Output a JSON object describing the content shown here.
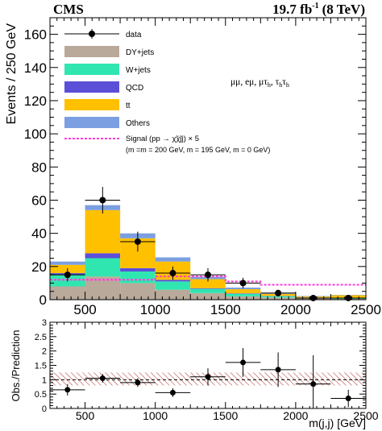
{
  "header": {
    "experiment": "CMS",
    "lumi_value": "19.7 fb",
    "lumi_exp": "-1",
    "energy": "(8 TeV)"
  },
  "channels": {
    "part1": "μμ, eμ, μτ",
    "sub1": "h",
    "part2": ", τ",
    "sub2": "h",
    "part3": "τ",
    "sub3": "h"
  },
  "chart_data": [
    {
      "type": "bar",
      "stacked": true,
      "ylabel": "Events / 250 GeV",
      "xlim": [
        250,
        2500
      ],
      "ylim": [
        0,
        170
      ],
      "yticks": [
        0,
        20,
        40,
        60,
        80,
        100,
        120,
        140,
        160
      ],
      "xticks": [
        500,
        1000,
        1500,
        2000,
        2500
      ],
      "bin_edges": [
        250,
        500,
        750,
        1000,
        1250,
        1500,
        1750,
        2000,
        2250,
        2500
      ],
      "series": [
        {
          "name": "DY+jets",
          "color": "#b9a99a",
          "values": [
            8,
            14,
            10,
            6,
            4,
            2,
            1.3,
            0.8,
            0.5
          ]
        },
        {
          "name": "W+jets",
          "color": "#30e6b0",
          "values": [
            7,
            11,
            7,
            5,
            2.5,
            1.5,
            0.8,
            0.4,
            0.3
          ]
        },
        {
          "name": "QCD",
          "color": "#5b4fd8",
          "values": [
            1,
            3,
            2,
            1,
            0.4,
            0.3,
            0.2,
            0.1,
            0.1
          ]
        },
        {
          "name": "tt",
          "color": "#ffc000",
          "values": [
            5,
            26,
            18,
            11,
            5.5,
            2.5,
            1.2,
            0.6,
            1.8
          ]
        },
        {
          "name": "Others",
          "color": "#7b9fe0",
          "values": [
            2,
            3,
            3,
            2.5,
            1.5,
            1,
            0.6,
            0.3,
            0.2
          ]
        }
      ],
      "signal": {
        "name": "Signal",
        "color": "#ff3ad8",
        "values": [
          12,
          12,
          12,
          14,
          14,
          11,
          9,
          9,
          9
        ]
      },
      "data": {
        "name": "data",
        "x": [
          375,
          625,
          875,
          1125,
          1375,
          1625,
          1875,
          2125,
          2375
        ],
        "y": [
          15,
          60,
          35,
          16,
          15,
          10,
          4,
          1,
          1
        ],
        "yerr": [
          4,
          8,
          6,
          4,
          4,
          3.2,
          2,
          1,
          1
        ]
      },
      "legend": {
        "data": "data",
        "dy": "DY+jets",
        "w": "W+jets",
        "qcd": "QCD",
        "tt": "tt",
        "others": "Others",
        "signal_line1": "Signal (pp → χ̃χ̃jj) × 5",
        "signal_line2": "(m   =m   = 200 GeV, m  = 195 GeV, m   = 0 GeV)"
      }
    },
    {
      "type": "scatter",
      "xlabel": "m(j,j) [GeV]",
      "ylabel": "Obs./Prediction",
      "xlim": [
        250,
        2500
      ],
      "ylim": [
        0,
        3
      ],
      "yticks": [
        0,
        0.5,
        1,
        1.5,
        2,
        2.5,
        3
      ],
      "ytick_labels": [
        "0",
        "0.5",
        "1",
        "1.5",
        "2",
        "2.5",
        "3"
      ],
      "xticks": [
        500,
        1000,
        1500,
        2000,
        2500
      ],
      "x": [
        375,
        625,
        875,
        1125,
        1375,
        1625,
        1875,
        2125,
        2375
      ],
      "y": [
        0.65,
        1.05,
        0.9,
        0.55,
        1.1,
        1.6,
        1.35,
        0.85,
        0.35
      ],
      "yerr": [
        0.2,
        0.15,
        0.15,
        0.15,
        0.3,
        0.5,
        0.6,
        1.0,
        0.3
      ],
      "band": {
        "lo": 0.8,
        "hi": 1.25
      }
    }
  ]
}
